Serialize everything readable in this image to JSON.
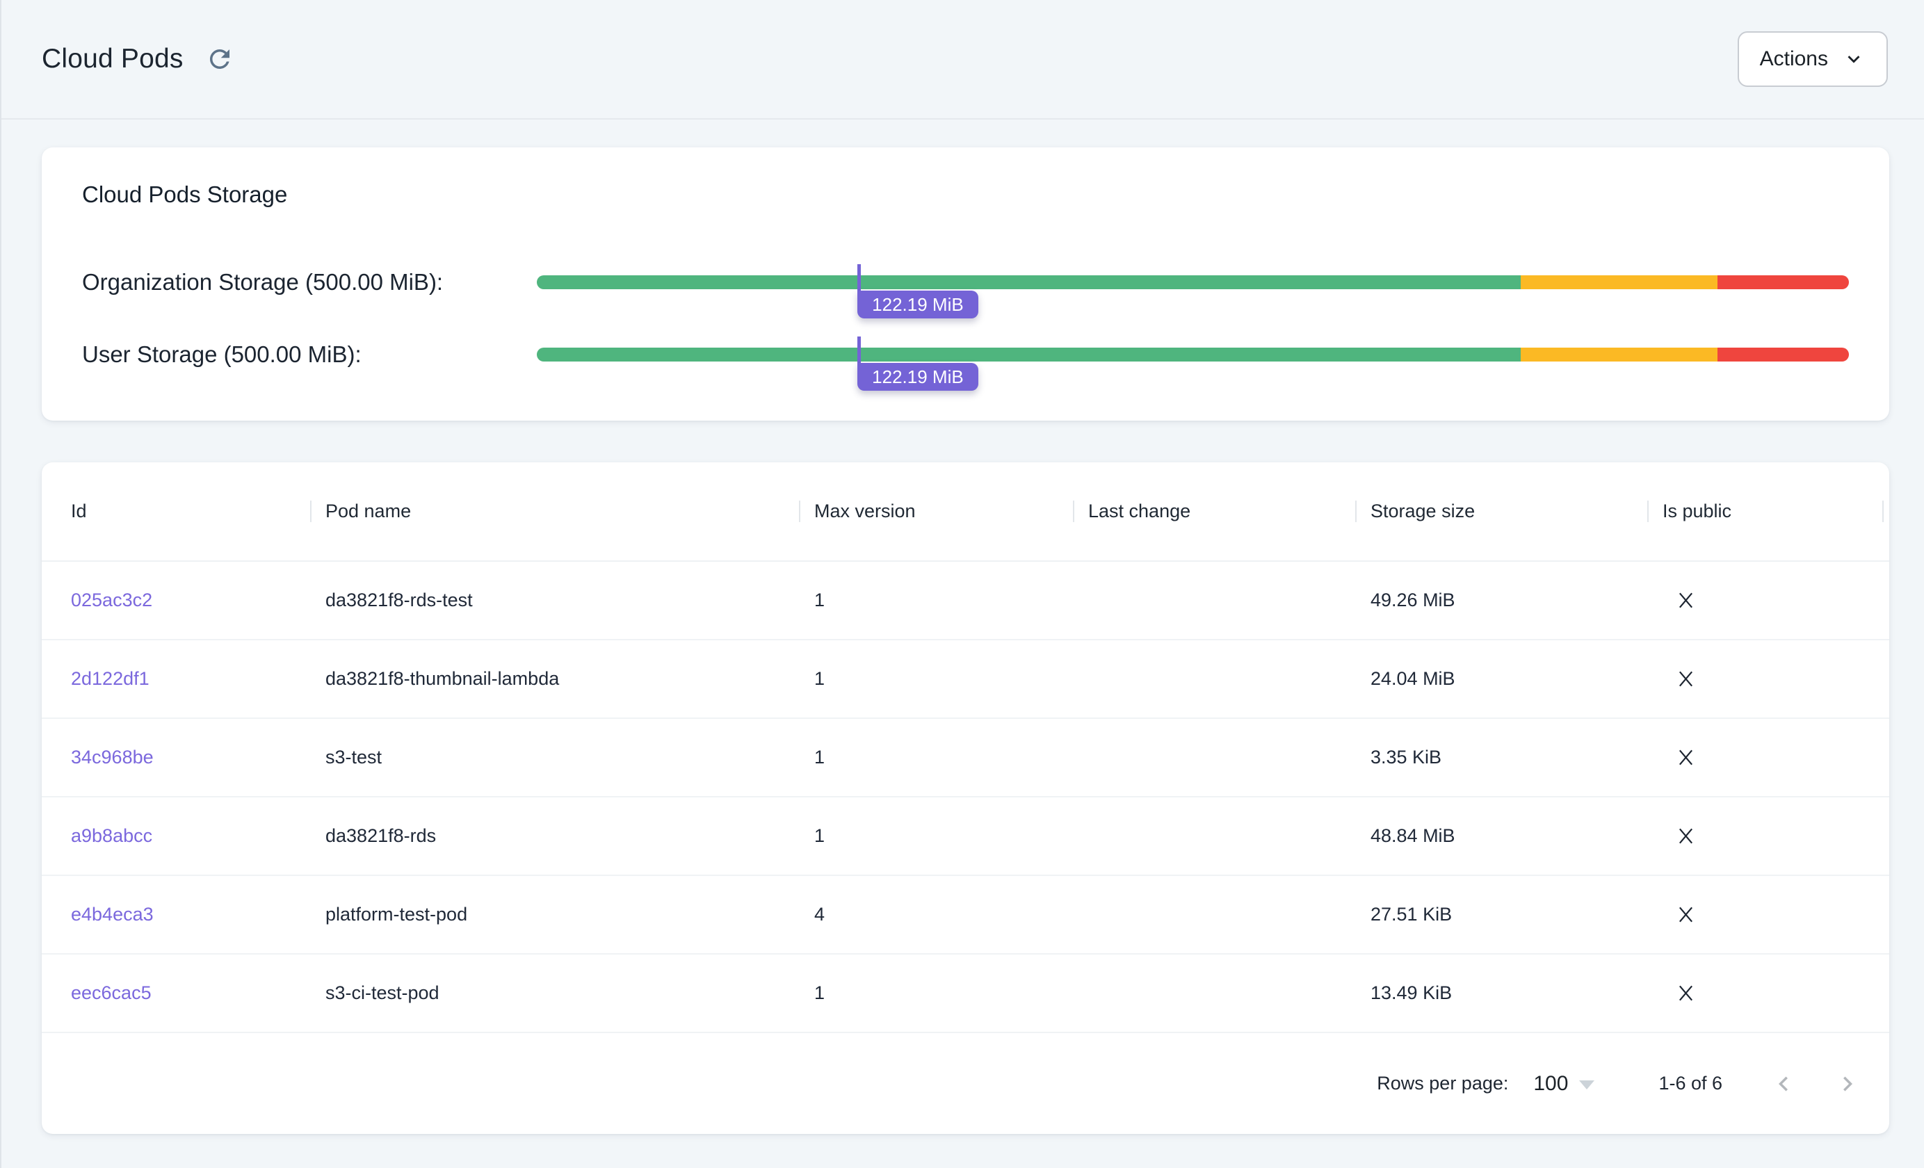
{
  "header": {
    "title": "Cloud Pods",
    "actions_label": "Actions"
  },
  "storage": {
    "title": "Cloud Pods Storage",
    "segments": {
      "green_pct": 75,
      "amber_pct": 15,
      "red_pct": 10
    },
    "bars": [
      {
        "label": "Organization Storage (500.00 MiB):",
        "value_label": "122.19 MiB",
        "value_pct": 24.44
      },
      {
        "label": "User Storage (500.00 MiB):",
        "value_label": "122.19 MiB",
        "value_pct": 24.44
      }
    ]
  },
  "table": {
    "columns": [
      "Id",
      "Pod name",
      "Max version",
      "Last change",
      "Storage size",
      "Is public"
    ],
    "rows": [
      {
        "id": "025ac3c2",
        "pod_name": "da3821f8-rds-test",
        "max_version": "1",
        "last_change": "",
        "storage_size": "49.26 MiB",
        "is_public": false
      },
      {
        "id": "2d122df1",
        "pod_name": "da3821f8-thumbnail-lambda",
        "max_version": "1",
        "last_change": "",
        "storage_size": "24.04 MiB",
        "is_public": false
      },
      {
        "id": "34c968be",
        "pod_name": "s3-test",
        "max_version": "1",
        "last_change": "",
        "storage_size": "3.35 KiB",
        "is_public": false
      },
      {
        "id": "a9b8abcc",
        "pod_name": "da3821f8-rds",
        "max_version": "1",
        "last_change": "",
        "storage_size": "48.84 MiB",
        "is_public": false
      },
      {
        "id": "e4b4eca3",
        "pod_name": "platform-test-pod",
        "max_version": "4",
        "last_change": "",
        "storage_size": "27.51 KiB",
        "is_public": false
      },
      {
        "id": "eec6cac5",
        "pod_name": "s3-ci-test-pod",
        "max_version": "1",
        "last_change": "",
        "storage_size": "13.49 KiB",
        "is_public": false
      }
    ],
    "pagination": {
      "rows_per_page_label": "Rows per page:",
      "rows_per_page_value": "100",
      "range_label": "1-6 of 6"
    }
  },
  "icons": {
    "refresh": "refresh-icon",
    "actions_caret": "chevron-down-icon",
    "not_public": "x-icon",
    "select_caret": "caret-down-icon",
    "previous_page": "chevron-left-icon",
    "next_page": "chevron-right-icon"
  },
  "colors": {
    "accent_purple": "#7463d6",
    "link_purple": "#7b68dd",
    "bar_green": "#4fb57e",
    "bar_amber": "#fbb924",
    "bar_red": "#ef453e",
    "refresh_icon": "#5d7389",
    "disabled_icon": "#b3b7bb"
  }
}
